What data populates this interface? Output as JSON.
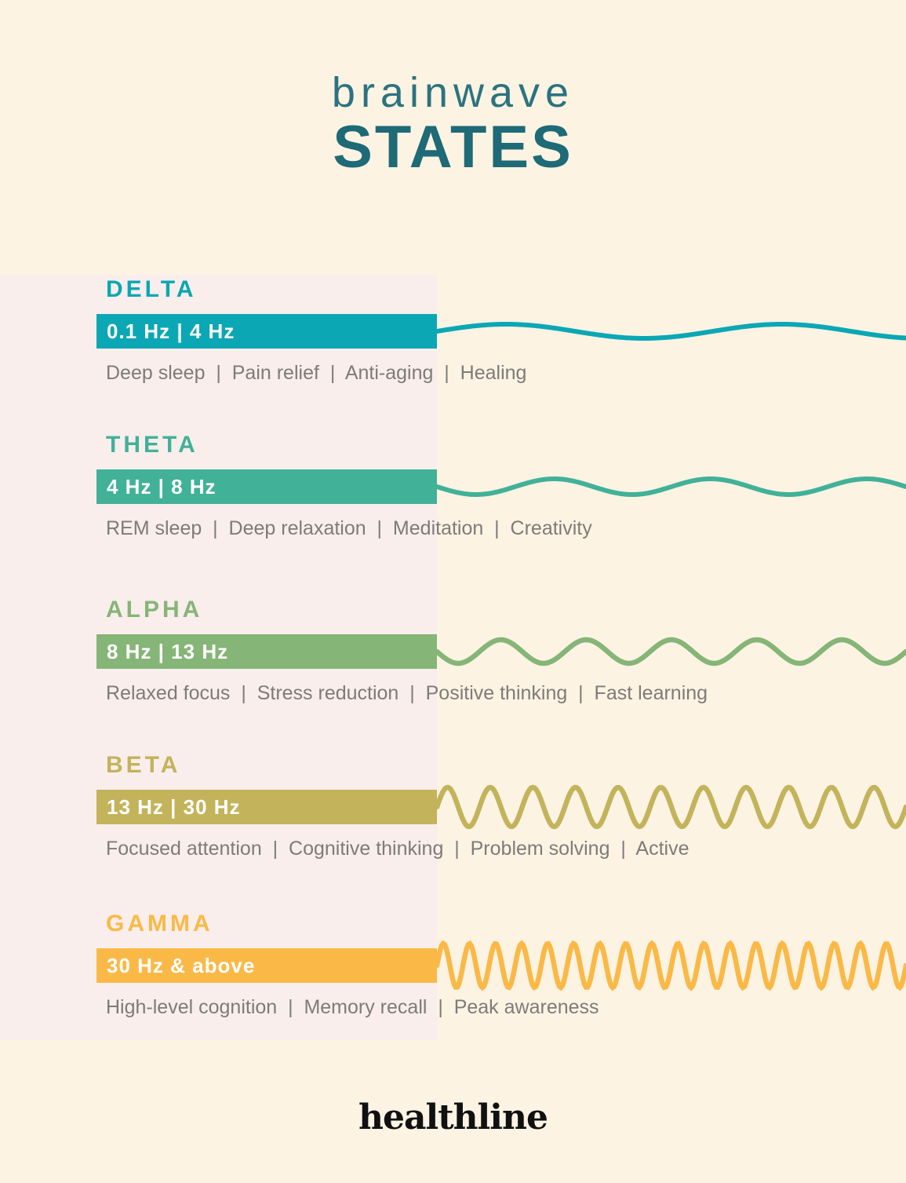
{
  "title": {
    "line1": "brainwave",
    "line2": "STATES"
  },
  "brand": "healthline",
  "colors": {
    "background": "#fcf3e3",
    "accent_band": "#f9eeec",
    "title_light_teal": "#2b7380",
    "title_dark_teal": "#1e6a76",
    "description_text": "#7e7b78",
    "bar_label_text": "#ffffff",
    "logo_black": "#111111"
  },
  "sections": [
    {
      "name": "DELTA",
      "freq": "0.1 Hz | 4 Hz",
      "desc": "Deep sleep  |  Pain relief  |  Anti-aging  |  Healing",
      "color": "#0ba7b4",
      "wave": {
        "cycles": 1.7,
        "amplitude": 9,
        "direction": "up",
        "stroke": 6
      }
    },
    {
      "name": "THETA",
      "freq": "4 Hz | 8 Hz",
      "desc": "REM sleep  |  Deep relaxation  |  Meditation  |  Creativity",
      "color": "#41b198",
      "wave": {
        "cycles": 3,
        "amplitude": 10,
        "direction": "down",
        "stroke": 6
      }
    },
    {
      "name": "ALPHA",
      "freq": "8 Hz | 13 Hz",
      "desc": "Relaxed focus  |  Stress reduction  |  Positive thinking  |  Fast learning",
      "color": "#85b577",
      "wave": {
        "cycles": 5.5,
        "amplitude": 15,
        "direction": "down",
        "stroke": 6.5
      }
    },
    {
      "name": "BETA",
      "freq": "13 Hz | 30 Hz",
      "desc": "Focused attention  |  Cognitive thinking  |  Problem solving  |  Active",
      "color": "#c3b35b",
      "wave": {
        "cycles": 11,
        "amplitude": 25,
        "direction": "up",
        "stroke": 6.5
      }
    },
    {
      "name": "GAMMA",
      "freq": "30 Hz & above",
      "desc": "High-level cognition  |  Memory recall  |  Peak awareness",
      "color": "#fab947",
      "wave": {
        "cycles": 18,
        "amplitude": 28,
        "direction": "up",
        "stroke": 6.5
      }
    }
  ]
}
